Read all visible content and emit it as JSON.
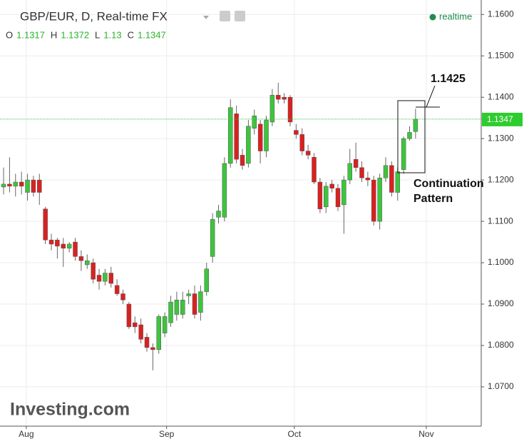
{
  "chart_data": {
    "type": "candlestick",
    "title": "GBP/EUR, D, Real-time FX",
    "status": "realtime",
    "ohlc_labels": [
      "O",
      "H",
      "L",
      "C"
    ],
    "watermark": "Investing.com",
    "annotations": [
      "1.1425",
      "Continuation",
      "Pattern"
    ],
    "up_color": "#3ec43e",
    "down_color": "#d92121",
    "grid": true,
    "series": {
      "open": [
        1.1183,
        1.119,
        1.1185,
        1.1195,
        1.117,
        1.12,
        1.12,
        1.113,
        1.1055,
        1.1055,
        1.1045,
        1.1035,
        1.105,
        1.1015,
        1.0995,
        1.1,
        1.097,
        1.0955,
        1.0975,
        1.0945,
        1.0925,
        1.09,
        1.0855,
        1.085,
        1.082,
        1.0795,
        1.079,
        1.083,
        1.0855,
        1.0875,
        1.0875,
        1.092,
        1.0925,
        1.088,
        1.093,
        1.1015,
        1.111,
        1.111,
        1.124,
        1.136,
        1.126,
        1.124,
        1.1325,
        1.1335,
        1.127,
        1.134,
        1.1405,
        1.14,
        1.14,
        1.132,
        1.131,
        1.127,
        1.1255,
        1.1195,
        1.1135,
        1.119,
        1.118,
        1.114,
        1.12,
        1.125,
        1.123,
        1.1205,
        1.12,
        1.11,
        1.1205,
        1.1235,
        1.117,
        1.1225,
        1.13,
        1.1317
      ],
      "high": [
        1.123,
        1.1255,
        1.1215,
        1.122,
        1.1215,
        1.121,
        1.1215,
        1.1135,
        1.107,
        1.106,
        1.106,
        1.105,
        1.106,
        1.103,
        1.102,
        1.101,
        1.0985,
        1.0985,
        1.099,
        1.096,
        1.0935,
        1.0905,
        1.087,
        1.0865,
        1.083,
        1.0805,
        1.0875,
        1.088,
        1.092,
        1.093,
        1.093,
        1.0935,
        1.0945,
        1.0945,
        1.1,
        1.112,
        1.114,
        1.1255,
        1.1395,
        1.138,
        1.1275,
        1.1345,
        1.137,
        1.1345,
        1.1355,
        1.142,
        1.1435,
        1.141,
        1.1405,
        1.1335,
        1.1325,
        1.1285,
        1.1265,
        1.1205,
        1.1195,
        1.12,
        1.119,
        1.121,
        1.1275,
        1.129,
        1.1245,
        1.122,
        1.121,
        1.1215,
        1.1255,
        1.1245,
        1.123,
        1.1305,
        1.133,
        1.1372
      ],
      "low": [
        1.1165,
        1.117,
        1.116,
        1.1165,
        1.115,
        1.116,
        1.114,
        1.1045,
        1.103,
        1.101,
        1.099,
        1.1025,
        1.1005,
        1.098,
        1.0985,
        1.095,
        1.0935,
        1.0945,
        1.094,
        1.092,
        1.09,
        1.084,
        1.083,
        1.0805,
        1.0785,
        1.074,
        1.078,
        1.082,
        1.0845,
        1.086,
        1.0865,
        1.09,
        1.0865,
        1.086,
        1.092,
        1.1,
        1.1095,
        1.11,
        1.123,
        1.124,
        1.1225,
        1.123,
        1.131,
        1.124,
        1.1255,
        1.133,
        1.1385,
        1.1385,
        1.133,
        1.13,
        1.126,
        1.125,
        1.119,
        1.112,
        1.112,
        1.117,
        1.1125,
        1.107,
        1.119,
        1.122,
        1.1195,
        1.1185,
        1.109,
        1.108,
        1.1195,
        1.116,
        1.115,
        1.1215,
        1.1295,
        1.13
      ],
      "close": [
        1.119,
        1.1185,
        1.1195,
        1.1185,
        1.12,
        1.117,
        1.117,
        1.1055,
        1.1045,
        1.104,
        1.1035,
        1.1045,
        1.1015,
        1.1005,
        1.1005,
        1.096,
        1.0955,
        1.0975,
        1.095,
        1.0925,
        1.091,
        1.0845,
        1.0845,
        1.0815,
        1.0795,
        1.079,
        1.087,
        1.087,
        1.0905,
        1.091,
        1.091,
        1.0925,
        1.0875,
        1.093,
        1.0985,
        1.1105,
        1.1125,
        1.124,
        1.1375,
        1.125,
        1.1235,
        1.133,
        1.1355,
        1.127,
        1.1345,
        1.1405,
        1.1395,
        1.1395,
        1.134,
        1.131,
        1.127,
        1.126,
        1.1195,
        1.113,
        1.1185,
        1.118,
        1.1135,
        1.12,
        1.124,
        1.123,
        1.1205,
        1.12,
        1.11,
        1.1205,
        1.1235,
        1.117,
        1.122,
        1.13,
        1.1315,
        1.1347
      ]
    },
    "ylim": [
      1.0605,
      1.1635
    ],
    "yticks": [
      {
        "value": 1.07,
        "label": "1.0700"
      },
      {
        "value": 1.08,
        "label": "1.0800"
      },
      {
        "value": 1.09,
        "label": "1.0900"
      },
      {
        "value": 1.1,
        "label": "1.1000"
      },
      {
        "value": 1.11,
        "label": "1.1100"
      },
      {
        "value": 1.12,
        "label": "1.1200"
      },
      {
        "value": 1.13,
        "label": "1.1300"
      },
      {
        "value": 1.14,
        "label": "1.1400"
      },
      {
        "value": 1.15,
        "label": "1.1500"
      },
      {
        "value": 1.16,
        "label": "1.1600"
      }
    ],
    "xlim": [
      -0.6,
      80
    ],
    "xticks": [
      {
        "value": 3.8,
        "label": "Aug"
      },
      {
        "value": 27.3,
        "label": "Sep"
      },
      {
        "value": 48.7,
        "label": "Oct"
      },
      {
        "value": 70.8,
        "label": "Nov"
      }
    ]
  }
}
